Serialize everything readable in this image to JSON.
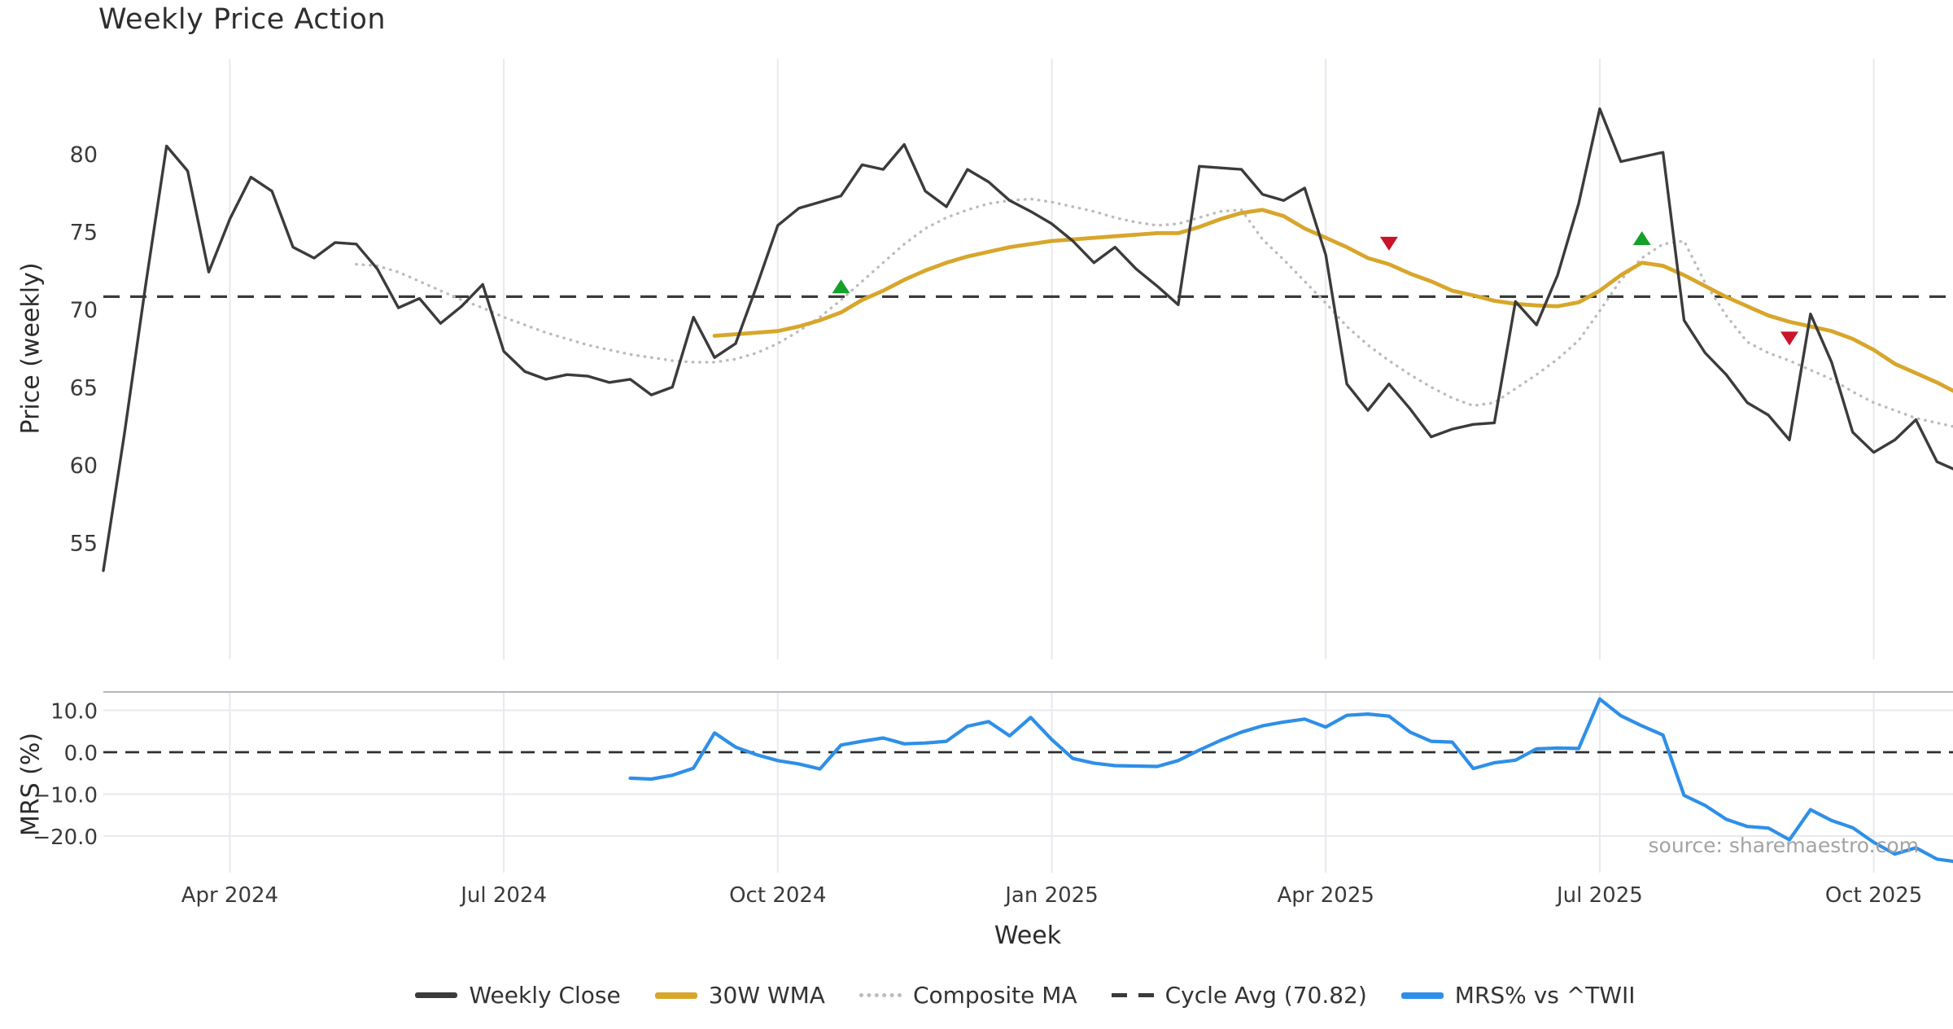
{
  "title": "Weekly Price Action",
  "xlabel": "Week",
  "watermark": "source: sharemaestro.com",
  "price_panel": {
    "ylabel": "Price (weekly)",
    "yticks": [
      {
        "value": 55,
        "label": "55"
      },
      {
        "value": 60,
        "label": "60"
      },
      {
        "value": 65,
        "label": "65"
      },
      {
        "value": 70,
        "label": "70"
      },
      {
        "value": 75,
        "label": "75"
      },
      {
        "value": 80,
        "label": "80"
      }
    ]
  },
  "mrs_panel": {
    "ylabel": "MRS (%)",
    "yticks": [
      {
        "value": 10,
        "label": "10.0"
      },
      {
        "value": 0,
        "label": "0.0"
      },
      {
        "value": -10,
        "label": "−10.0"
      },
      {
        "value": -20,
        "label": "−20.0"
      }
    ]
  },
  "x_ticks": [
    {
      "week": 6,
      "label": "Apr 2024"
    },
    {
      "week": 19,
      "label": "Jul 2024"
    },
    {
      "week": 32,
      "label": "Oct 2024"
    },
    {
      "week": 45,
      "label": "Jan 2025"
    },
    {
      "week": 58,
      "label": "Apr 2025"
    },
    {
      "week": 71,
      "label": "Jul 2025"
    },
    {
      "week": 84,
      "label": "Oct 2025"
    }
  ],
  "legend": [
    {
      "label": "Weekly Close",
      "swatch": "solid-dark"
    },
    {
      "label": "30W WMA",
      "swatch": "solid-gold"
    },
    {
      "label": "Composite MA",
      "swatch": "dotted-gray"
    },
    {
      "label": "Cycle Avg (70.82)",
      "swatch": "dashed-dark"
    },
    {
      "label": "MRS% vs ^TWII",
      "swatch": "solid-blue"
    }
  ],
  "colors": {
    "close": "#3b3b3b",
    "wma": "#d7a62b",
    "composite": "#bcbcbc",
    "cycle_avg": "#3a3a3a",
    "mrs": "#2e8fe8",
    "buy_marker": "#14a12b",
    "sell_marker": "#c9142a",
    "grid": "#e8e8ef",
    "panel_spine": "#b5b5bd",
    "tick_text": "#3a3a3a"
  },
  "chart_data": {
    "type": "line",
    "title": "Weekly Price Action",
    "x_unit": "week_index",
    "n_weeks": 89,
    "cycle_avg": 70.82,
    "price_ylim_ticks": [
      55,
      80
    ],
    "mrs_ylim_ticks": [
      -20,
      10
    ],
    "series": [
      {
        "name": "Weekly Close",
        "panel": "price",
        "start_week": 0,
        "values": [
          53.2,
          62,
          71.5,
          80.5,
          78.9,
          72.4,
          75.8,
          78.5,
          77.6,
          74,
          73.3,
          74.3,
          74.2,
          72.6,
          70.1,
          70.7,
          69.1,
          70.2,
          71.6,
          67.3,
          66,
          65.5,
          65.8,
          65.7,
          65.3,
          65.5,
          64.5,
          65,
          69.5,
          66.9,
          67.8,
          71.5,
          75.4,
          76.5,
          76.9,
          77.3,
          79.3,
          79,
          80.6,
          77.6,
          76.6,
          79,
          78.2,
          77,
          76.3,
          75.5,
          74.4,
          73,
          74,
          72.6,
          71.5,
          70.3,
          79.2,
          79.1,
          79,
          77.4,
          77,
          77.8,
          73.5,
          65.2,
          63.5,
          65.2,
          63.6,
          61.8,
          62.3,
          62.6,
          62.7,
          70.5,
          69,
          72.2,
          76.8,
          82.9,
          79.5,
          79.8,
          80.1,
          69.3,
          67.2,
          65.8,
          64,
          63.2,
          61.6,
          69.7,
          66.6,
          62.1,
          60.8,
          61.6,
          62.9,
          60.2,
          59.6
        ]
      },
      {
        "name": "30W WMA",
        "panel": "price",
        "start_week": 29,
        "values": [
          68.3,
          68.4,
          68.5,
          68.6,
          68.9,
          69.3,
          69.8,
          70.6,
          71.2,
          71.9,
          72.5,
          73,
          73.4,
          73.7,
          74,
          74.2,
          74.4,
          74.5,
          74.6,
          74.7,
          74.8,
          74.9,
          74.9,
          75.3,
          75.8,
          76.2,
          76.4,
          76,
          75.2,
          74.6,
          74,
          73.3,
          72.9,
          72.3,
          71.8,
          71.2,
          70.9,
          70.55,
          70.35,
          70.25,
          70.2,
          70.45,
          71.2,
          72.2,
          73,
          72.8,
          72.2,
          71.5,
          70.8,
          70.2,
          69.6,
          69.2,
          68.9,
          68.6,
          68.1,
          67.4,
          66.5,
          65.9,
          65.3,
          64.6,
          64
        ]
      },
      {
        "name": "Composite MA",
        "panel": "price",
        "start_week": 12,
        "values": [
          72.9,
          72.8,
          72.4,
          71.8,
          71.2,
          70.6,
          70.1,
          69.5,
          69,
          68.5,
          68.1,
          67.7,
          67.4,
          67.1,
          66.9,
          66.7,
          66.6,
          66.6,
          66.8,
          67.2,
          67.8,
          68.6,
          69.5,
          70.6,
          71.8,
          73,
          74.2,
          75.2,
          75.9,
          76.4,
          76.8,
          77,
          77.1,
          76.9,
          76.6,
          76.3,
          75.9,
          75.6,
          75.4,
          75.5,
          75.9,
          76.3,
          76.4,
          74.5,
          73.2,
          71.8,
          70.4,
          68.9,
          67.7,
          66.7,
          65.8,
          65,
          64.3,
          63.8,
          64,
          64.9,
          65.8,
          66.8,
          68,
          69.9,
          71.9,
          73.3,
          74.2,
          74.4,
          71.7,
          69.6,
          67.9,
          67.2,
          66.7,
          66.1,
          65.5,
          64.7,
          64,
          63.5,
          63,
          62.7,
          62.4
        ]
      },
      {
        "name": "MRS% vs ^TWII",
        "panel": "mrs",
        "start_week": 25,
        "values": [
          -6.2,
          -6.4,
          -5.5,
          -3.8,
          4.6,
          1.2,
          -0.6,
          -2,
          -2.8,
          -4,
          1.7,
          2.6,
          3.4,
          2,
          2.2,
          2.6,
          6.2,
          7.3,
          3.9,
          8.3,
          3,
          -1.5,
          -2.6,
          -3.2,
          -3.3,
          -3.4,
          -2,
          0.5,
          2.8,
          4.8,
          6.3,
          7.2,
          7.9,
          6,
          8.8,
          9.1,
          8.6,
          4.8,
          2.6,
          2.4,
          -3.9,
          -2.5,
          -1.9,
          0.8,
          1,
          0.9,
          12.7,
          8.7,
          6.3,
          4.1,
          -10.3,
          -12.7,
          -16,
          -17.7,
          -18.1,
          -20.9,
          -13.7,
          -16.3,
          -18,
          -21.5,
          -24.3,
          -22.8,
          -25.5,
          -26.2
        ]
      }
    ],
    "markers": {
      "buy": [
        {
          "week": 35,
          "price": 71.4
        },
        {
          "week": 73,
          "price": 74.5
        }
      ],
      "sell": [
        {
          "week": 61,
          "price": 74.3
        },
        {
          "week": 80,
          "price": 68.2
        }
      ]
    }
  }
}
